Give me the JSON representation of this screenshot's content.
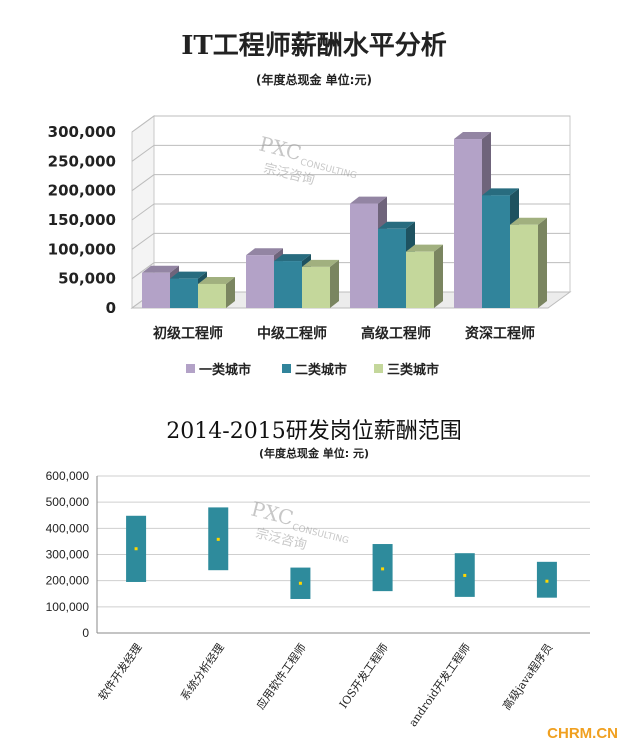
{
  "chart_data": [
    {
      "type": "bar",
      "title": "IT工程师薪酬水平分析",
      "subtitle": "(年度总现金  单位:元)",
      "categories": [
        "初级工程师",
        "中级工程师",
        "高级工程师",
        "资深工程师"
      ],
      "series": [
        {
          "name": "一类城市",
          "values": [
            60000,
            90000,
            178000,
            288000
          ]
        },
        {
          "name": "二类城市",
          "values": [
            50000,
            80000,
            135000,
            192000
          ]
        },
        {
          "name": "三类城市",
          "values": [
            41000,
            70000,
            96000,
            142000
          ]
        }
      ],
      "yticks": [
        "0",
        "50,000",
        "100,000",
        "150,000",
        "200,000",
        "250,000",
        "300,000"
      ],
      "ylim": [
        0,
        300000
      ],
      "grid": true,
      "legend": "bottom",
      "colors": [
        "#b3a2c7",
        "#31849b",
        "#c4d79b"
      ]
    },
    {
      "type": "range",
      "title": "2014-2015研发岗位薪酬范围",
      "subtitle": "(年度总现金  单位: 元)",
      "categories": [
        "软件开发经理",
        "系统分析经理",
        "应用软件工程师",
        "IOS开发工程师",
        "android开发工程师",
        "高级java程序员"
      ],
      "low": [
        195000,
        240000,
        130000,
        160000,
        138000,
        135000
      ],
      "high": [
        448000,
        480000,
        250000,
        340000,
        305000,
        272000
      ],
      "mid": [
        322000,
        358000,
        190000,
        245000,
        220000,
        198000
      ],
      "yticks": [
        "0",
        "100,000",
        "200,000",
        "300,000",
        "400,000",
        "500,000",
        "600,000"
      ],
      "ylim": [
        0,
        600000
      ],
      "grid": true,
      "colors": [
        "#2e8b9c",
        "#ffd700"
      ]
    }
  ],
  "watermark": {
    "main": "PXC",
    "sub": "CONSULTING",
    "cn": "宗泛咨询"
  },
  "logo": "CHRM.CN"
}
